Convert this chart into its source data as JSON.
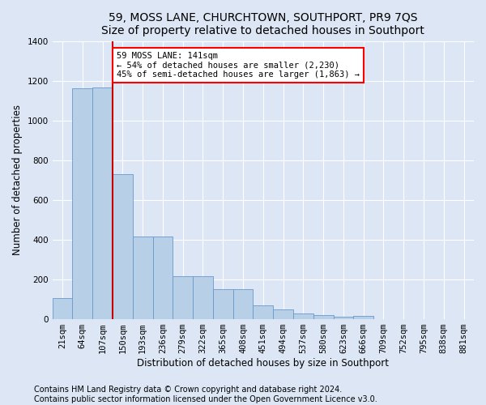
{
  "title": "59, MOSS LANE, CHURCHTOWN, SOUTHPORT, PR9 7QS",
  "subtitle": "Size of property relative to detached houses in Southport",
  "xlabel": "Distribution of detached houses by size in Southport",
  "ylabel": "Number of detached properties",
  "categories": [
    "21sqm",
    "64sqm",
    "107sqm",
    "150sqm",
    "193sqm",
    "236sqm",
    "279sqm",
    "322sqm",
    "365sqm",
    "408sqm",
    "451sqm",
    "494sqm",
    "537sqm",
    "580sqm",
    "623sqm",
    "666sqm",
    "709sqm",
    "752sqm",
    "795sqm",
    "838sqm",
    "881sqm"
  ],
  "bar_heights": [
    105,
    1160,
    1165,
    730,
    415,
    415,
    215,
    215,
    150,
    150,
    70,
    48,
    28,
    20,
    12,
    18,
    0,
    0,
    0,
    0,
    0
  ],
  "bar_color": "#b8cfe8",
  "bar_edge_color": "#6699cc",
  "vline_color": "#cc0000",
  "vline_x": 2.5,
  "annotation_text": "59 MOSS LANE: 141sqm\n← 54% of detached houses are smaller (2,230)\n45% of semi-detached houses are larger (1,863) →",
  "annotation_box_color": "white",
  "annotation_box_edge_color": "red",
  "background_color": "#dce6f5",
  "plot_bg_color": "#dce6f5",
  "footer_line1": "Contains HM Land Registry data © Crown copyright and database right 2024.",
  "footer_line2": "Contains public sector information licensed under the Open Government Licence v3.0.",
  "ylim": [
    0,
    1400
  ],
  "yticks": [
    0,
    200,
    400,
    600,
    800,
    1000,
    1200,
    1400
  ],
  "title_fontsize": 10,
  "axis_label_fontsize": 8.5,
  "tick_fontsize": 7.5,
  "footer_fontsize": 7,
  "annot_fontsize": 7.5
}
